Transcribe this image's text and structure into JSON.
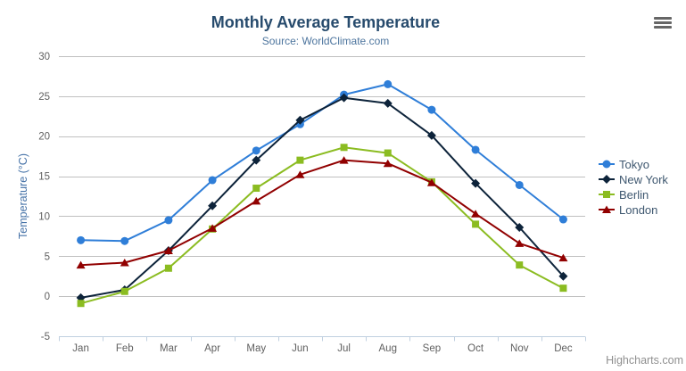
{
  "chart": {
    "credit": "Highcharts.com"
  },
  "colors": {
    "background": "#ffffff",
    "title": "#274b6d",
    "subtitle": "#4d759e",
    "axis_title": "#4572a7",
    "axis_label": "#606060",
    "gridline": "#c0c0c0",
    "axis_line": "#c0d0e0",
    "legend_text": "#3e576f",
    "credit": "#909090",
    "menu_icon": "#666666"
  },
  "chart_data": {
    "type": "line",
    "title": "Monthly Average Temperature",
    "subtitle": "Source: WorldClimate.com",
    "xlabel": "",
    "ylabel": "Temperature (°C)",
    "categories": [
      "Jan",
      "Feb",
      "Mar",
      "Apr",
      "May",
      "Jun",
      "Jul",
      "Aug",
      "Sep",
      "Oct",
      "Nov",
      "Dec"
    ],
    "series": [
      {
        "name": "Tokyo",
        "color": "#2f7ed8",
        "marker": "circle",
        "values": [
          7.0,
          6.9,
          9.5,
          14.5,
          18.2,
          21.5,
          25.2,
          26.5,
          23.3,
          18.3,
          13.9,
          9.6
        ]
      },
      {
        "name": "New York",
        "color": "#0d233a",
        "marker": "diamond",
        "values": [
          -0.2,
          0.8,
          5.7,
          11.3,
          17.0,
          22.0,
          24.8,
          24.1,
          20.1,
          14.1,
          8.6,
          2.5
        ]
      },
      {
        "name": "Berlin",
        "color": "#8bbc21",
        "marker": "square",
        "values": [
          -0.9,
          0.6,
          3.5,
          8.4,
          13.5,
          17.0,
          18.6,
          17.9,
          14.3,
          9.0,
          3.9,
          1.0
        ]
      },
      {
        "name": "London",
        "color": "#910000",
        "marker": "triangle",
        "values": [
          3.9,
          4.2,
          5.7,
          8.5,
          11.9,
          15.2,
          17.0,
          16.6,
          14.2,
          10.3,
          6.6,
          4.8
        ]
      }
    ],
    "ylim": [
      -5,
      30
    ],
    "ytick_step": 5,
    "grid": true,
    "legend_position": "right"
  }
}
